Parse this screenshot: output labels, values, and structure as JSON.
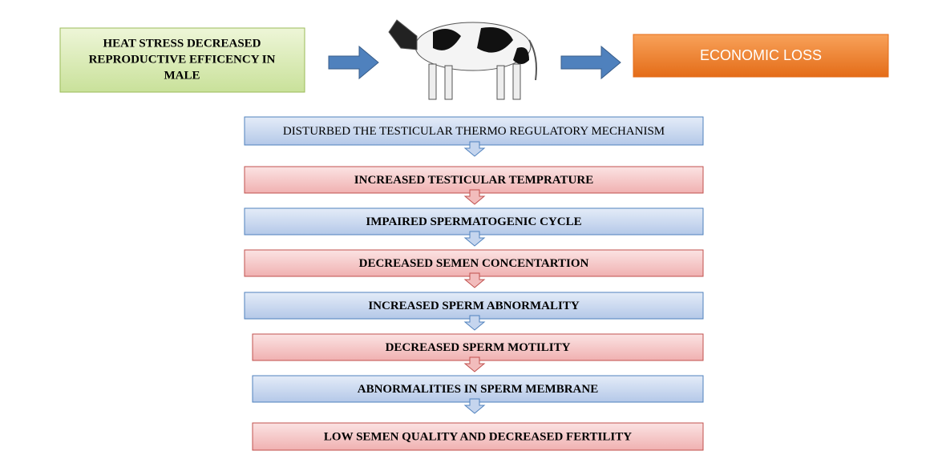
{
  "left_box": {
    "lines": [
      "HEAT STRESS DECREASED",
      "REPRODUCTIVE EFFICENCY IN",
      "MALE"
    ]
  },
  "right_box": {
    "text": "ECONOMIC LOSS"
  },
  "steps": [
    {
      "text": "DISTURBED THE TESTICULAR THERMO REGULATORY MECHANISM"
    },
    {
      "text": "INCREASED TESTICULAR TEMPRATURE"
    },
    {
      "text": "IMPAIRED SPERMATOGENIC CYCLE"
    },
    {
      "text": "DECREASED SEMEN CONCENTARTION"
    },
    {
      "text": "INCREASED SPERM ABNORMALITY"
    },
    {
      "text": "DECREASED SPERM MOTILITY"
    },
    {
      "text": "ABNORMALITIES IN SPERM MEMBRANE"
    },
    {
      "text": "LOW SEMEN QUALITY AND DECREASED FERTILITY"
    }
  ]
}
